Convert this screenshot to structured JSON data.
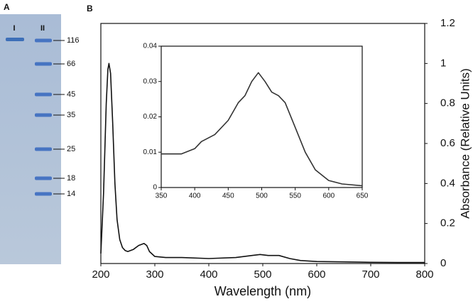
{
  "gel": {
    "panel_label": "A",
    "lanes": [
      "I",
      "II"
    ],
    "markers": [
      116,
      66,
      45,
      35,
      25,
      18,
      14
    ]
  },
  "chart_data": [
    {
      "type": "line",
      "panel_label": "B",
      "x_label": "Wavelength (nm)",
      "y_label": "Absorbance (Relative Units)",
      "y_axis_side": "right",
      "color": "#111111",
      "grid": false,
      "x": [
        200,
        205,
        210,
        213,
        215,
        218,
        222,
        226,
        230,
        235,
        240,
        245,
        250,
        260,
        270,
        280,
        285,
        290,
        300,
        320,
        350,
        400,
        450,
        480,
        495,
        510,
        530,
        550,
        570,
        600,
        650,
        700,
        750,
        800
      ],
      "values": [
        0.05,
        0.35,
        0.8,
        0.97,
        1.0,
        0.95,
        0.7,
        0.4,
        0.22,
        0.12,
        0.08,
        0.065,
        0.06,
        0.07,
        0.09,
        0.1,
        0.09,
        0.06,
        0.035,
        0.03,
        0.03,
        0.025,
        0.03,
        0.04,
        0.045,
        0.04,
        0.04,
        0.025,
        0.015,
        0.01,
        0.008,
        0.006,
        0.005,
        0.005
      ],
      "xlim": [
        200,
        800
      ],
      "xticks": [
        200,
        300,
        400,
        500,
        600,
        700,
        800
      ],
      "ylim": [
        0,
        1.2
      ],
      "yticks": [
        0,
        0.2,
        0.4,
        0.6,
        0.8,
        1,
        1.2
      ]
    },
    {
      "type": "line",
      "y_axis_side": "left",
      "color": "#333333",
      "grid": false,
      "x": [
        350,
        380,
        400,
        410,
        430,
        450,
        465,
        475,
        485,
        495,
        505,
        515,
        525,
        535,
        550,
        565,
        580,
        600,
        620,
        650
      ],
      "values": [
        0.0095,
        0.0095,
        0.011,
        0.013,
        0.015,
        0.019,
        0.024,
        0.026,
        0.03,
        0.0325,
        0.03,
        0.027,
        0.026,
        0.024,
        0.017,
        0.01,
        0.005,
        0.002,
        0.001,
        0.0005
      ],
      "xlim": [
        350,
        650
      ],
      "xticks": [
        350,
        400,
        450,
        500,
        550,
        600,
        650
      ],
      "ylim": [
        0,
        0.04
      ],
      "yticks": [
        0,
        0.01,
        0.02,
        0.03,
        0.04
      ]
    }
  ]
}
